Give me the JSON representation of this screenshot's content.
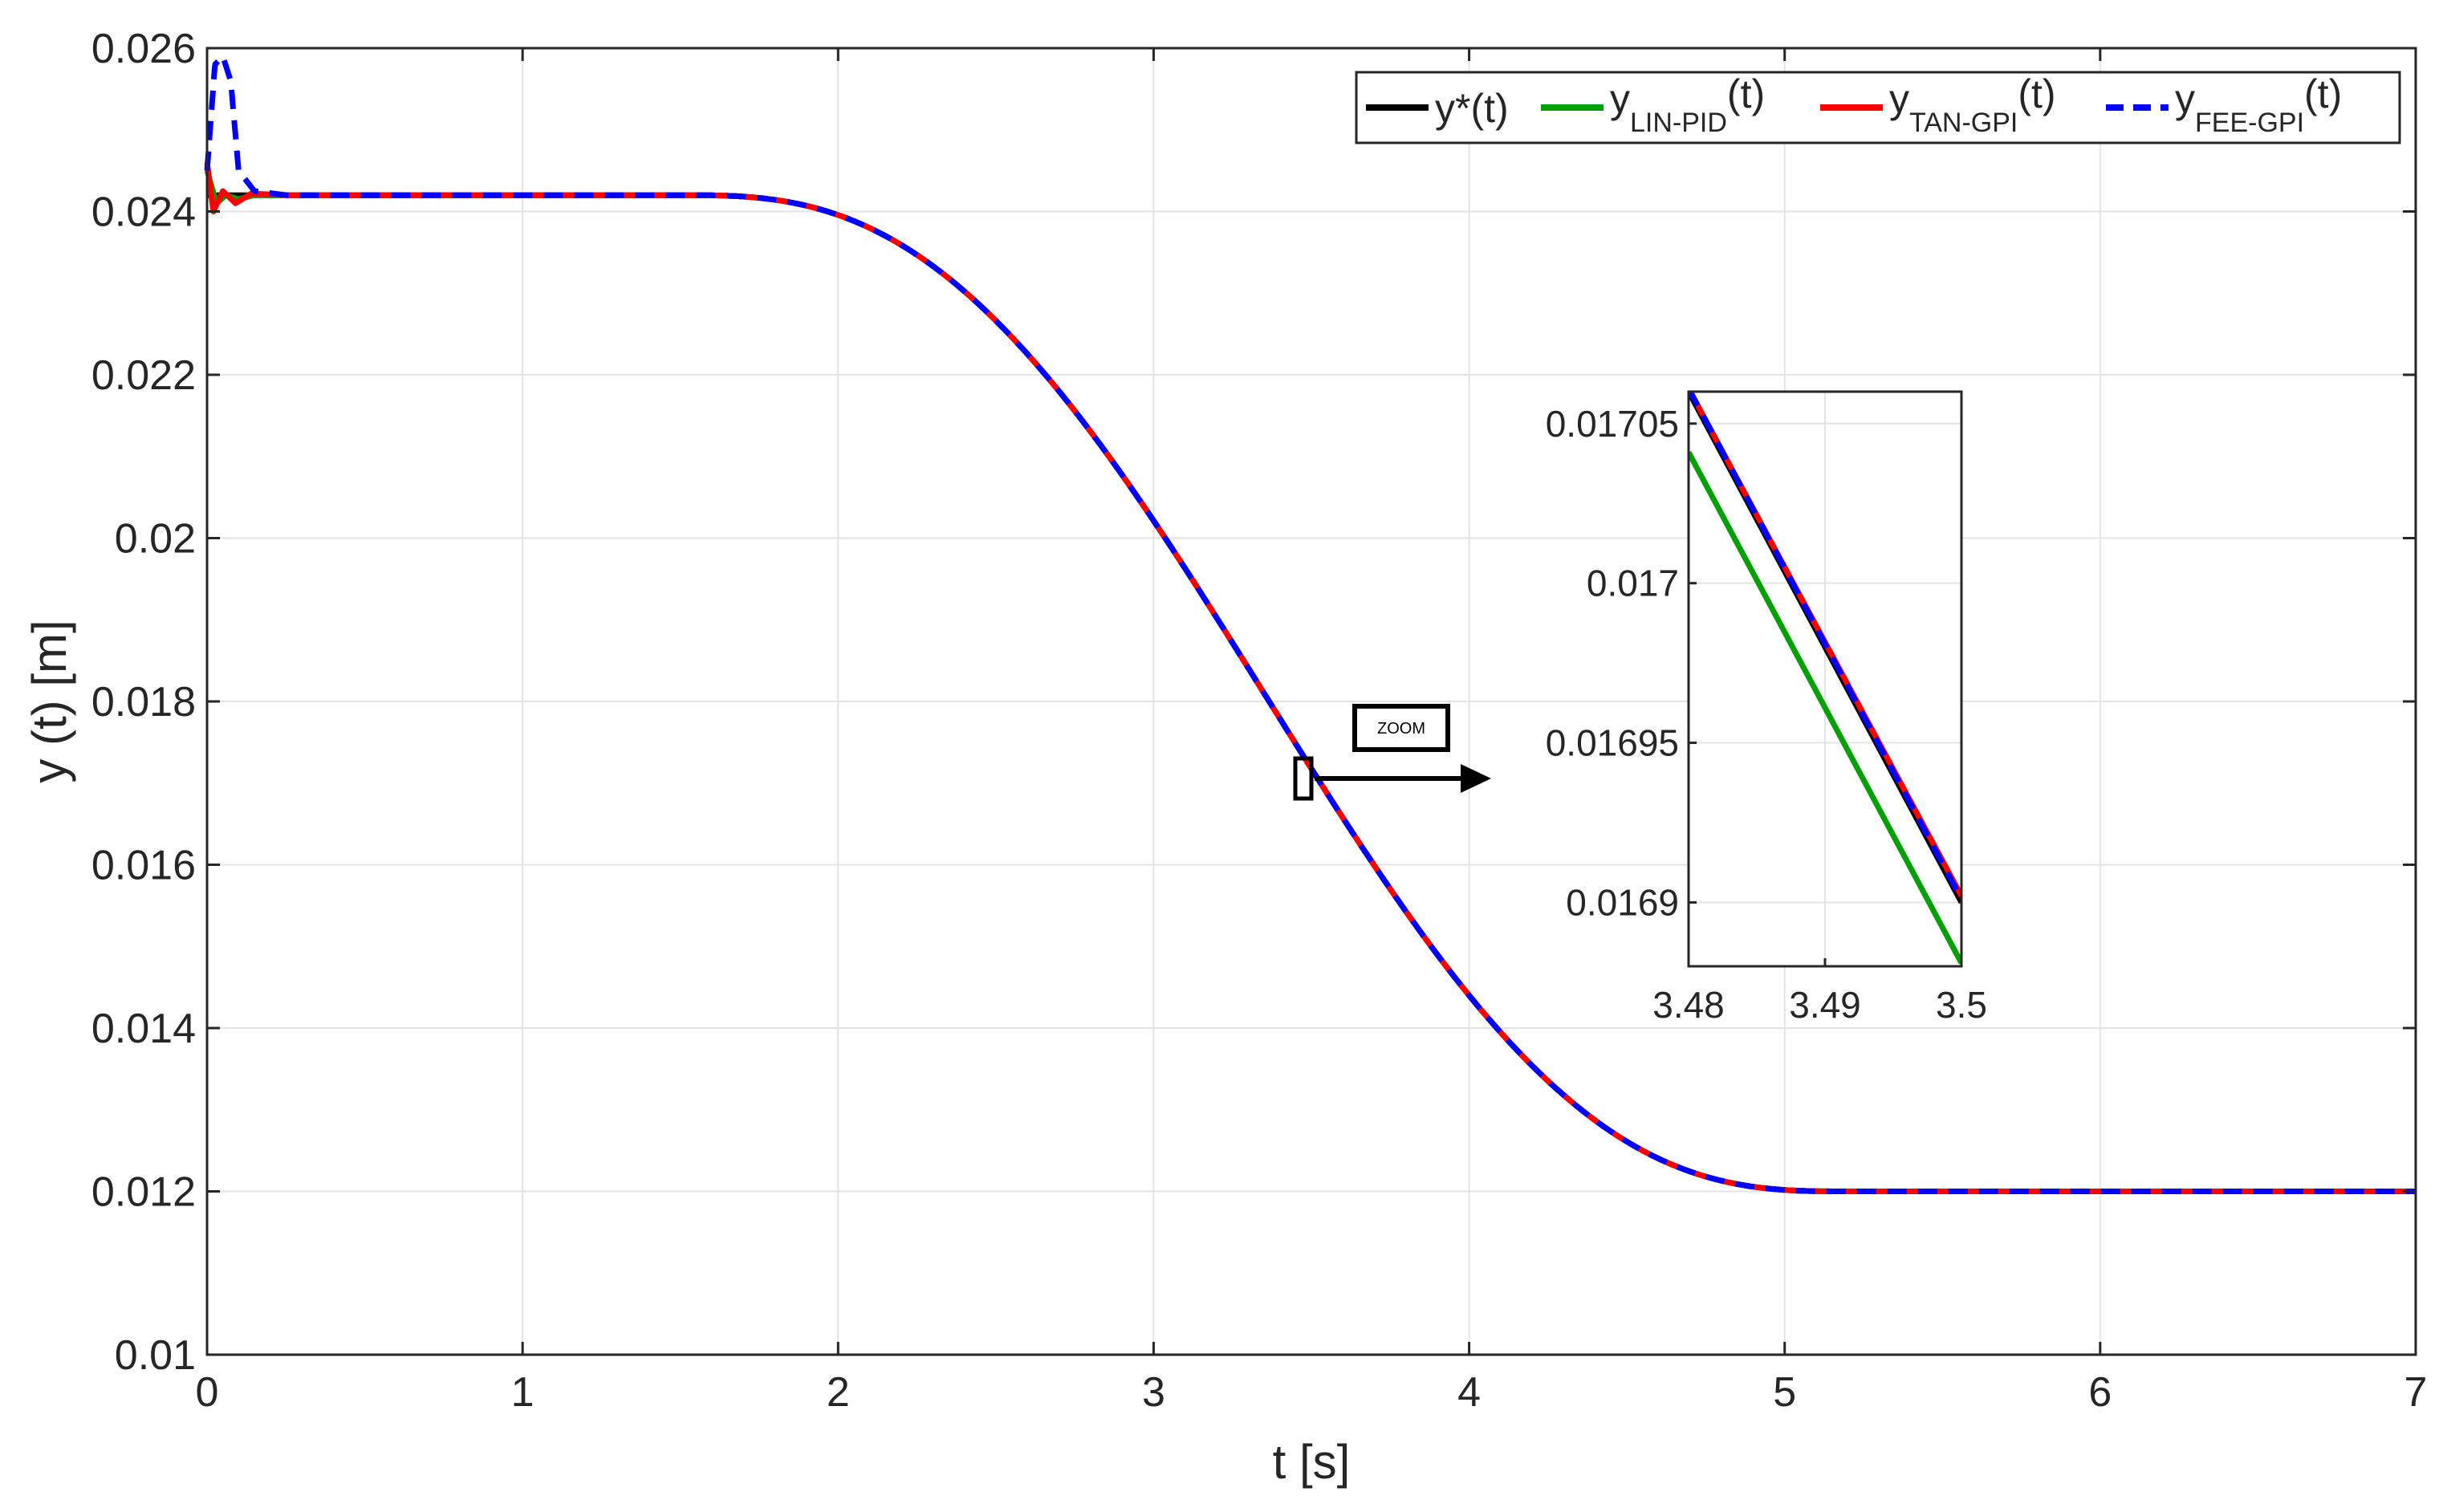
{
  "chart_data": [
    {
      "type": "line",
      "xlabel": "t [s]",
      "ylabel": "y (t) [m]",
      "xlim": [
        0,
        7
      ],
      "ylim": [
        0.01,
        0.026
      ],
      "xticks": [
        "0",
        "1",
        "2",
        "3",
        "4",
        "5",
        "6",
        "7"
      ],
      "yticks": [
        "0.01",
        "0.012",
        "0.014",
        "0.016",
        "0.018",
        "0.02",
        "0.022",
        "0.024",
        "0.026"
      ],
      "grid": true,
      "legend_position": "top-right",
      "legend": [
        {
          "base": "y*(t)",
          "sub": "",
          "tail": "",
          "color": "#000000",
          "style": "solid"
        },
        {
          "base": "y",
          "sub": "LIN-PID",
          "tail": "(t)",
          "color": "#00a000",
          "style": "solid"
        },
        {
          "base": "y",
          "sub": "TAN-GPI",
          "tail": "(t)",
          "color": "#ff0000",
          "style": "solid"
        },
        {
          "base": "y",
          "sub": "FEE-GPI",
          "tail": "(t)",
          "color": "#0000ff",
          "style": "dashed"
        }
      ],
      "reference_trajectory": {
        "initial_value": 0.0242,
        "final_value": 0.012,
        "transition_start": 1.5,
        "transition_end": 5.2
      },
      "transient": {
        "series": [
          {
            "name": "y*(t)",
            "t": [
              0,
              0.3
            ],
            "y": [
              0.0242,
              0.0242
            ]
          },
          {
            "name": "yLIN-PID(t)",
            "t": [
              0,
              0.03,
              0.06,
              0.1,
              0.15,
              0.25
            ],
            "y": [
              0.0245,
              0.0241,
              0.0242,
              0.02415,
              0.0242,
              0.0242
            ]
          },
          {
            "name": "yTAN-GPI(t)",
            "t": [
              0,
              0.02,
              0.05,
              0.09,
              0.14,
              0.25
            ],
            "y": [
              0.0246,
              0.024,
              0.02425,
              0.0241,
              0.02422,
              0.0242
            ]
          },
          {
            "name": "yFEE-GPI(t)",
            "t": [
              0,
              0.025,
              0.05,
              0.075,
              0.1,
              0.15,
              0.25
            ],
            "y": [
              0.0245,
              0.0258,
              0.0259,
              0.0256,
              0.0245,
              0.02425,
              0.0242
            ]
          }
        ]
      },
      "annotation": "ZOOM"
    },
    {
      "type": "line",
      "inset": true,
      "xlim": [
        3.48,
        3.5
      ],
      "ylim": [
        0.01688,
        0.01706
      ],
      "xticks": [
        "3.48",
        "3.49",
        "3.5"
      ],
      "yticks": [
        "0.0169",
        "0.01695",
        "0.017",
        "0.01705"
      ],
      "grid": true,
      "series": [
        {
          "name": "y*(t)",
          "x": [
            3.48,
            3.5
          ],
          "y": [
            0.01706,
            0.0169
          ]
        },
        {
          "name": "yLIN-PID(t)",
          "x": [
            3.48,
            3.5
          ],
          "y": [
            0.017041,
            0.016881
          ]
        },
        {
          "name": "yTAN-GPI(t)",
          "x": [
            3.48,
            3.5
          ],
          "y": [
            0.017061,
            0.016902
          ]
        },
        {
          "name": "yFEE-GPI(t)",
          "x": [
            3.48,
            3.5
          ],
          "y": [
            0.017061,
            0.016901
          ]
        }
      ]
    }
  ]
}
